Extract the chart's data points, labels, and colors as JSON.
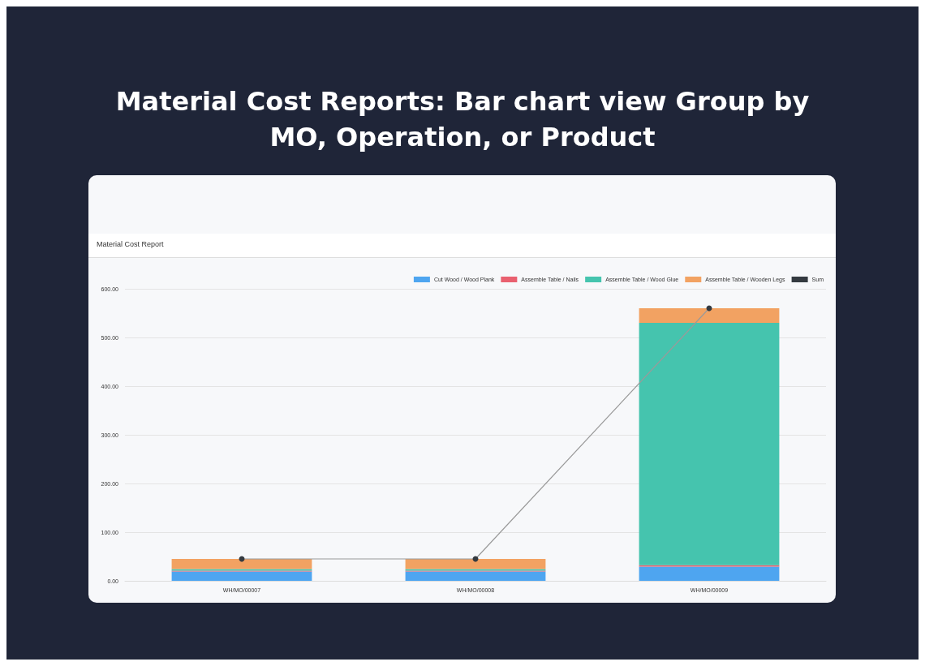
{
  "chart_data": {
    "type": "bar",
    "title": "Material Cost Reports: Bar chart view Group by MO, Operation, or Product",
    "subtitle": "Material Cost Report",
    "categories": [
      "WH/MO/00007",
      "WH/MO/00008",
      "WH/MO/00009"
    ],
    "stacked": true,
    "series": [
      {
        "name": "Cut Wood / Wood Plank",
        "color": "#4ea5f0",
        "values": [
          19,
          19,
          29
        ]
      },
      {
        "name": "Assemble Table / Nails",
        "color": "#e9606f",
        "values": [
          2,
          2,
          3
        ]
      },
      {
        "name": "Assemble Table / Wood Glue",
        "color": "#45c4ae",
        "values": [
          3,
          3,
          498
        ]
      },
      {
        "name": "Assemble Table / Wooden Legs",
        "color": "#f2a262",
        "values": [
          21,
          21,
          30
        ]
      },
      {
        "name": "Sum",
        "type": "line",
        "color": "#343a40",
        "values": [
          45,
          45,
          560
        ],
        "marker": "circle"
      }
    ],
    "ylim": [
      0,
      600
    ],
    "yticks": [
      {
        "value": 0,
        "label": "0.00"
      },
      {
        "value": 100,
        "label": "100.00"
      },
      {
        "value": 200,
        "label": "200.00"
      },
      {
        "value": 300,
        "label": "300.00"
      },
      {
        "value": 400,
        "label": "400.00"
      },
      {
        "value": 500,
        "label": "500.00"
      },
      {
        "value": 600,
        "label": "600.00"
      }
    ],
    "grid": "y",
    "legend": "top right"
  }
}
